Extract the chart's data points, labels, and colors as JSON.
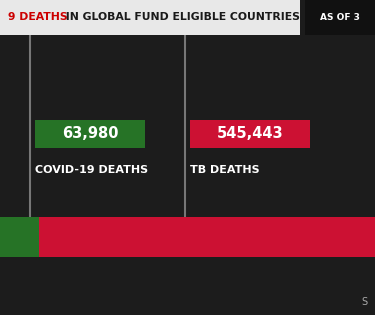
{
  "background_color": "#1c1c1c",
  "title_bar_color": "#e8e8e8",
  "title_text_red": "9 DEATHS",
  "title_text_black": " IN GLOBAL FUND ELIGIBLE COUNTRIES",
  "title_red_color": "#cc0000",
  "title_black_color": "#1a1a1a",
  "as_of_text": "AS OF 3",
  "as_of_bg": "#111111",
  "as_of_color": "#ffffff",
  "covid_value": "63,980",
  "covid_label": "COVID-19 DEATHS",
  "covid_color": "#267326",
  "tb_value": "545,443",
  "tb_label": "TB DEATHS",
  "tb_color": "#cc1133",
  "bar_covid_color": "#267326",
  "bar_tb_color": "#cc1133",
  "covid_deaths": 63980,
  "tb_deaths": 545443,
  "divider_color": "#777777",
  "source_text": "S",
  "source_color": "#aaaaaa",
  "fig_w": 3.75,
  "fig_h": 3.15,
  "dpi": 100
}
